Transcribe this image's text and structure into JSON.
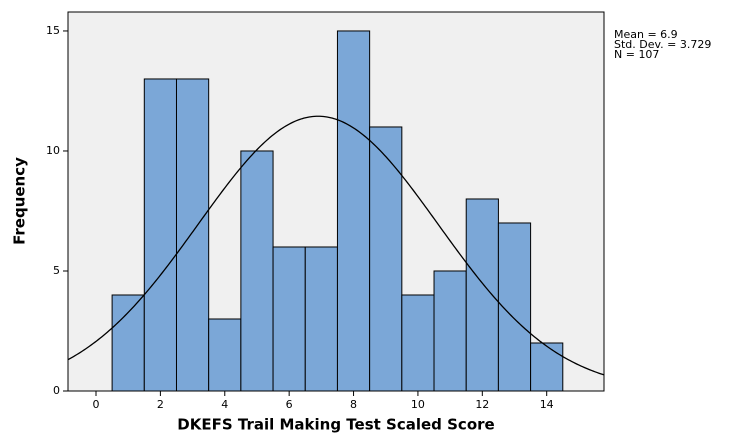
{
  "chart_data": {
    "type": "histogram",
    "x_label": "DKEFS Trail Making Test Scaled Score",
    "y_label": "Frequency",
    "bins": [
      0.5,
      1.5,
      2.5,
      3.5,
      4.5,
      5.5,
      6.5,
      7.5,
      8.5,
      9.5,
      10.5,
      11.5,
      12.5,
      13.5,
      14.5
    ],
    "values": [
      4,
      13,
      13,
      3,
      10,
      6,
      6,
      15,
      11,
      4,
      5,
      8,
      7,
      2
    ],
    "color": "#7ba7d7",
    "xlim": [
      -0.87,
      15.78
    ],
    "xticks": [
      0,
      2,
      4,
      6,
      8,
      10,
      12,
      14
    ],
    "ylim": [
      0,
      15.79
    ],
    "yticks": [
      0,
      5,
      10,
      15
    ],
    "stats": [
      {
        "value": 6.9,
        "label": "Mean = 6.9"
      },
      {
        "value": 3.729,
        "label": "Std. Dev. = 3.729"
      },
      {
        "value": 107,
        "label": "N = 107"
      }
    ]
  }
}
